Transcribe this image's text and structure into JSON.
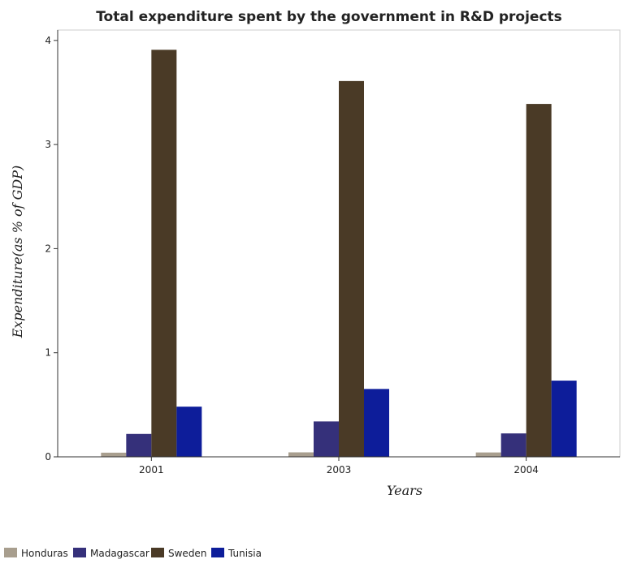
{
  "chart_data": {
    "type": "bar",
    "title": "Total expenditure spent by the government in R&D projects",
    "xlabel": "Years",
    "ylabel": "Expenditure(as % of GDP)",
    "categories": [
      "2001",
      "2003",
      "2004"
    ],
    "ylim": [
      0,
      4.1
    ],
    "yticks": [
      "0",
      "1",
      "2",
      "3",
      "4"
    ],
    "grid": false,
    "legend_position": "bottom-left",
    "series": [
      {
        "name": "Honduras",
        "color": "#a89e8e",
        "values": [
          0.04,
          0.043,
          0.042
        ]
      },
      {
        "name": "Madagascar",
        "color": "#35307a",
        "values": [
          0.22,
          0.34,
          0.225
        ]
      },
      {
        "name": "Sweden",
        "color": "#4a3a26",
        "values": [
          3.91,
          3.61,
          3.39
        ]
      },
      {
        "name": "Tunisia",
        "color": "#0d1d9a",
        "values": [
          0.482,
          0.652,
          0.732
        ]
      }
    ]
  }
}
